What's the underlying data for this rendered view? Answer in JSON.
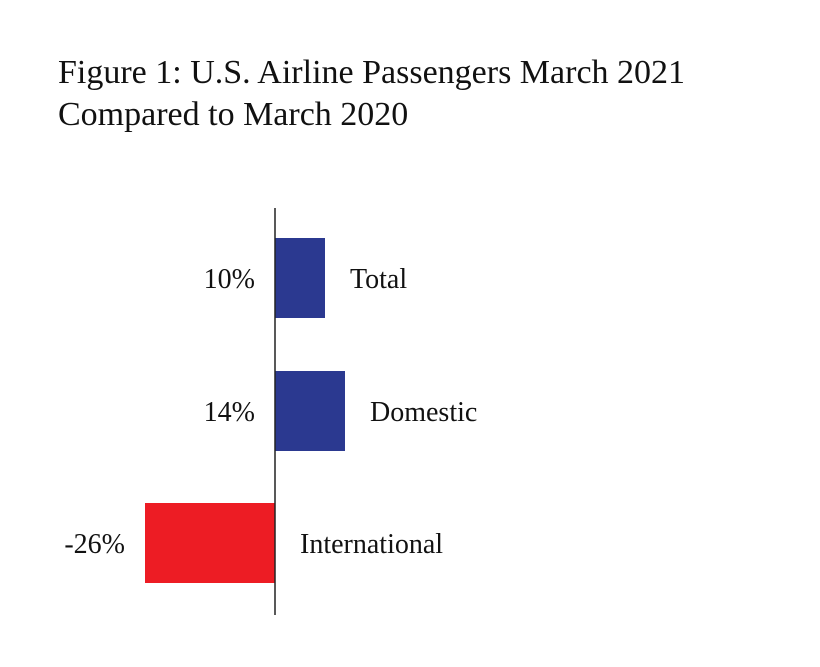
{
  "figure": {
    "title_line1": "Figure 1: U.S. Airline Passengers March 2021",
    "title_line2": "Compared to March 2020"
  },
  "chart_data": {
    "type": "bar",
    "orientation": "horizontal",
    "title": "Figure 1: U.S. Airline Passengers March 2021 Compared to March 2020",
    "categories": [
      "Total",
      "Domestic",
      "International"
    ],
    "values": [
      10,
      14,
      -26
    ],
    "value_labels": [
      "10%",
      "14%",
      "-26%"
    ],
    "unit": "%",
    "xlim": [
      -26,
      14
    ],
    "grid": false,
    "legend": "none",
    "colors": {
      "positive": "#2b3990",
      "negative": "#ed1c24",
      "axis": "#222222"
    }
  }
}
